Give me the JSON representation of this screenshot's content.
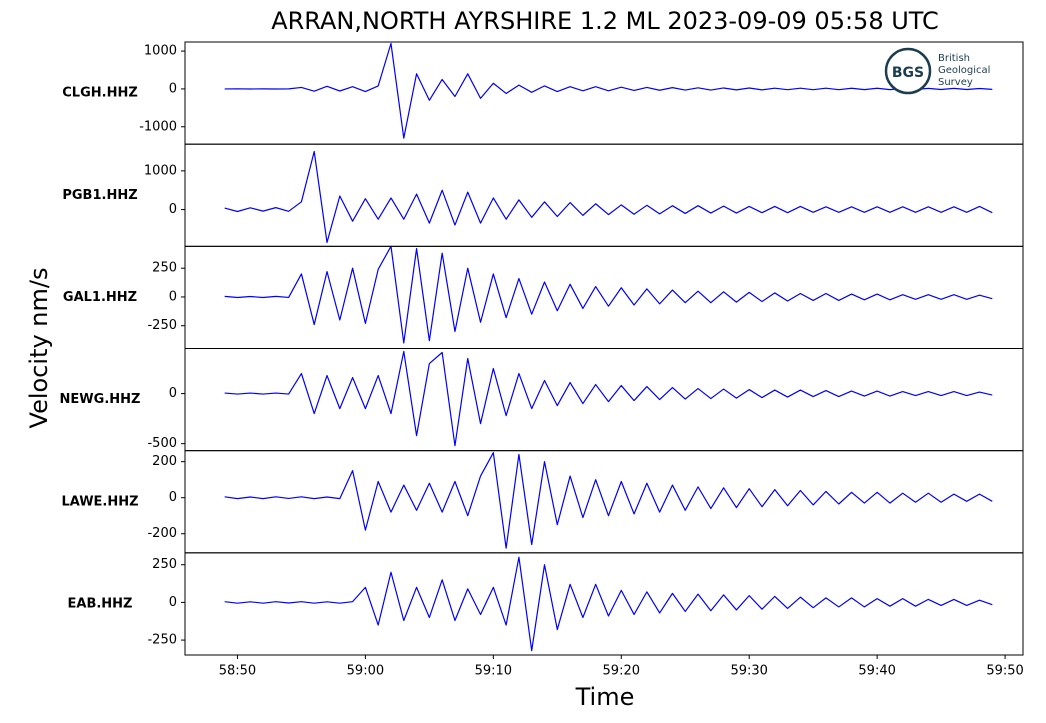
{
  "chart_data": {
    "type": "line",
    "title": "ARRAN,NORTH AYRSHIRE 1.2 ML   2023-09-09 05:58 UTC",
    "xlabel": "Time",
    "ylabel": "Velocity nm/s",
    "logo": {
      "abbr": "BGS",
      "name": [
        "British",
        "Geological",
        "Survey"
      ]
    },
    "color": "#0000ff",
    "xlim": [
      45.9,
      111.4
    ],
    "xticks": [
      {
        "value": 50,
        "label": "58:50"
      },
      {
        "value": 60,
        "label": "59:00"
      },
      {
        "value": 70,
        "label": "59:10"
      },
      {
        "value": 80,
        "label": "59:20"
      },
      {
        "value": 90,
        "label": "59:30"
      },
      {
        "value": 100,
        "label": "59:40"
      },
      {
        "value": 110,
        "label": "59:50"
      }
    ],
    "x": [
      49,
      50,
      51,
      52,
      53,
      54,
      55,
      56,
      57,
      58,
      59,
      60,
      61,
      62,
      63,
      64,
      65,
      66,
      67,
      68,
      69,
      70,
      71,
      72,
      73,
      74,
      75,
      76,
      77,
      78,
      79,
      80,
      81,
      82,
      83,
      84,
      85,
      86,
      87,
      88,
      89,
      90,
      91,
      92,
      93,
      94,
      95,
      96,
      97,
      98,
      99,
      100,
      101,
      102,
      103,
      104,
      105,
      106,
      107,
      108,
      109
    ],
    "panels": [
      {
        "name": "CLGH.HHZ",
        "ylim": [
          -1460,
          1240
        ],
        "yticks": [
          -1000,
          0,
          1000
        ],
        "values": [
          0,
          3,
          -2,
          2,
          -3,
          2,
          40,
          -60,
          70,
          -55,
          60,
          -70,
          80,
          1200,
          -1300,
          400,
          -300,
          250,
          -200,
          400,
          -250,
          150,
          -120,
          100,
          -90,
          80,
          -70,
          60,
          -50,
          60,
          -50,
          45,
          -40,
          40,
          -35,
          35,
          -30,
          30,
          -30,
          25,
          -25,
          25,
          -25,
          20,
          -20,
          20,
          -20,
          20,
          -20,
          18,
          -18,
          18,
          -18,
          15,
          -15,
          15,
          -15,
          15,
          -15,
          12,
          -12
        ]
      },
      {
        "name": "PGB1.HHZ",
        "ylim": [
          -950,
          1690
        ],
        "yticks": [
          0,
          1000
        ],
        "values": [
          40,
          -50,
          45,
          -40,
          50,
          -45,
          200,
          1500,
          -850,
          350,
          -300,
          280,
          -250,
          300,
          -250,
          400,
          -350,
          500,
          -400,
          450,
          -350,
          300,
          -250,
          250,
          -200,
          200,
          -180,
          180,
          -150,
          150,
          -130,
          120,
          -120,
          110,
          -110,
          100,
          -100,
          100,
          -90,
          90,
          -90,
          80,
          -80,
          80,
          -80,
          80,
          -70,
          70,
          -70,
          70,
          -70,
          70,
          -70,
          70,
          -70,
          70,
          -70,
          70,
          -70,
          80,
          -80
        ]
      },
      {
        "name": "GAL1.HHZ",
        "ylim": [
          -448,
          440
        ],
        "yticks": [
          -250,
          0,
          250
        ],
        "values": [
          5,
          -5,
          4,
          -5,
          5,
          -4,
          200,
          -240,
          220,
          -200,
          250,
          -230,
          240,
          440,
          -400,
          420,
          -380,
          380,
          -300,
          250,
          -220,
          200,
          -180,
          160,
          -150,
          130,
          -120,
          110,
          -100,
          90,
          -80,
          80,
          -70,
          70,
          -60,
          60,
          -50,
          50,
          -50,
          45,
          -45,
          40,
          -40,
          35,
          -35,
          30,
          -30,
          30,
          -30,
          25,
          -25,
          25,
          -25,
          20,
          -20,
          20,
          -20,
          20,
          -20,
          15,
          -15
        ]
      },
      {
        "name": "NEWG.HHZ",
        "ylim": [
          -570,
          450
        ],
        "yticks": [
          -500,
          0
        ],
        "values": [
          5,
          -5,
          5,
          -5,
          5,
          -5,
          200,
          -200,
          180,
          -150,
          160,
          -150,
          180,
          -200,
          420,
          -420,
          300,
          410,
          -520,
          350,
          -300,
          250,
          -220,
          200,
          -150,
          130,
          -120,
          110,
          -100,
          90,
          -80,
          80,
          -70,
          70,
          -60,
          60,
          -55,
          50,
          -50,
          45,
          -45,
          40,
          -40,
          35,
          -35,
          35,
          -30,
          30,
          -30,
          25,
          -25,
          25,
          -25,
          20,
          -20,
          20,
          -20,
          20,
          -20,
          15,
          -15
        ]
      },
      {
        "name": "LAWE.HHZ",
        "ylim": [
          -306,
          261
        ],
        "yticks": [
          -200,
          0,
          200
        ],
        "values": [
          5,
          -5,
          4,
          -5,
          5,
          -4,
          5,
          -5,
          4,
          -5,
          150,
          -180,
          90,
          -80,
          70,
          -70,
          80,
          -80,
          90,
          -100,
          120,
          250,
          -280,
          240,
          -260,
          200,
          -150,
          120,
          -110,
          100,
          -100,
          90,
          -90,
          80,
          -80,
          70,
          -70,
          60,
          -60,
          55,
          -55,
          50,
          -50,
          45,
          -45,
          40,
          -40,
          35,
          -35,
          30,
          -30,
          30,
          -30,
          25,
          -25,
          25,
          -25,
          20,
          -20,
          20,
          -20
        ]
      },
      {
        "name": "EAB.HHZ",
        "ylim": [
          -349,
          329
        ],
        "yticks": [
          -250,
          0,
          250
        ],
        "values": [
          5,
          -5,
          4,
          -5,
          5,
          -4,
          5,
          -5,
          4,
          -5,
          5,
          100,
          -150,
          200,
          -120,
          100,
          -100,
          150,
          -120,
          90,
          -80,
          100,
          -150,
          300,
          -320,
          250,
          -180,
          120,
          -100,
          120,
          -90,
          80,
          -80,
          70,
          -70,
          60,
          -60,
          55,
          -55,
          50,
          -50,
          45,
          -45,
          40,
          -40,
          35,
          -35,
          30,
          -30,
          30,
          -30,
          25,
          -25,
          25,
          -25,
          20,
          -20,
          20,
          -20,
          15,
          -15
        ]
      }
    ]
  }
}
